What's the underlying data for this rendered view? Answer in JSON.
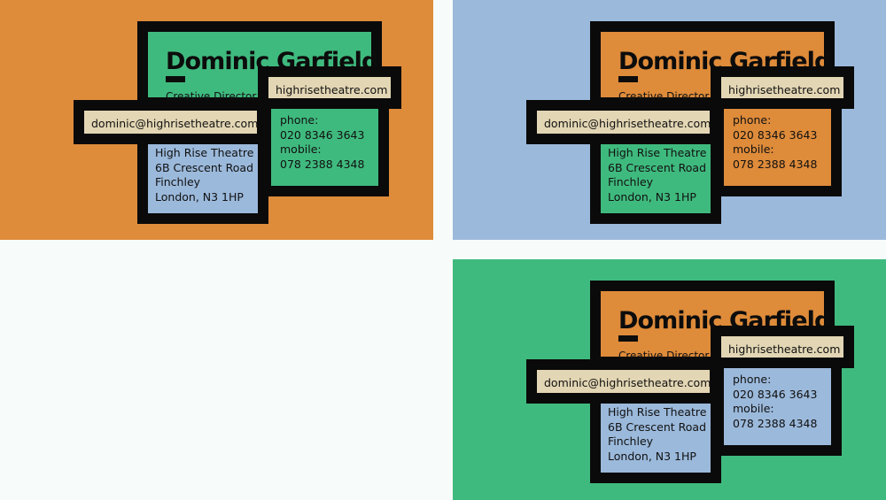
{
  "contact": {
    "name": "Dominic Garfield",
    "title": "Creative Director",
    "website": "highrisetheatre.com",
    "email": "dominic@highrisetheatre.com",
    "address": [
      "High Rise Theatre",
      "6B Crescent Road",
      "Finchley",
      "London, N3 1HP"
    ],
    "phone_label": "phone:",
    "phone": "020 8346 3643",
    "mobile_label": "mobile:",
    "mobile": "078 2388 4348"
  },
  "colors": {
    "orange": "#DE8B3A",
    "blue": "#9BB9DB",
    "green": "#3FBA7E",
    "beige": "#E3D6B4",
    "black": "#0A0A0A"
  },
  "cards": [
    {
      "id": "orange-card",
      "background": "orange",
      "name_block": "green",
      "address_block": "blue",
      "phone_block": "green"
    },
    {
      "id": "blue-card",
      "background": "blue",
      "name_block": "orange",
      "address_block": "green",
      "phone_block": "orange"
    },
    {
      "id": "green-card",
      "background": "green",
      "name_block": "orange",
      "address_block": "blue",
      "phone_block": "blue"
    }
  ]
}
